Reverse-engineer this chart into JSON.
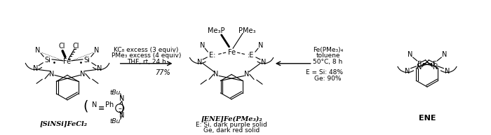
{
  "background_color": "#ffffff",
  "text_color": "#000000",
  "fig_width": 7.0,
  "fig_height": 1.93,
  "dpi": 100,
  "label_SiNSi": "[SiNSi]FeCl₂",
  "label_ENEFe": "[ENE]Fe(PMe₃)₂",
  "label_ENE": "ENE",
  "note_E_Si": "E: Si, dark purple solid",
  "note_Ge": "Ge, dark red solid",
  "yield_left": "77%",
  "cond1": "KC₈ excess (3 equiv)",
  "cond2": "PMe₃ excess (4 equiv)",
  "cond3": "THF, rt, 24 h",
  "cond_right1": "Fe(PMe₃)₄",
  "cond_right2": "toluene",
  "cond_right3": "50°C, 8 h",
  "yield_right1": "E = Si: 48%",
  "yield_right2": "Ge: 90%"
}
